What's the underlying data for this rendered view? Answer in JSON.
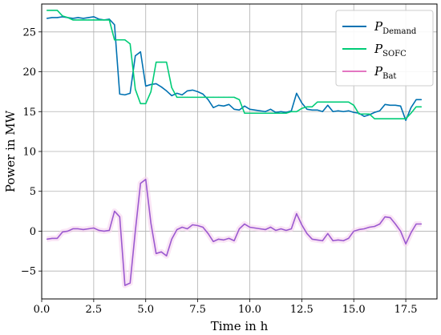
{
  "chart_data": {
    "type": "line",
    "xlabel": "Time in h",
    "ylabel": "Power in MW",
    "xlim": [
      0,
      19
    ],
    "ylim": [
      -8.5,
      28.5
    ],
    "xticks": [
      0.0,
      2.5,
      5.0,
      7.5,
      10.0,
      12.5,
      15.0,
      17.5
    ],
    "xtick_labels": [
      "0.0",
      "2.5",
      "5.0",
      "7.5",
      "10.0",
      "12.5",
      "15.0",
      "17.5"
    ],
    "yticks": [
      -5,
      0,
      5,
      10,
      15,
      20,
      25
    ],
    "ytick_labels": [
      "−5",
      "0",
      "5",
      "10",
      "15",
      "20",
      "25"
    ],
    "grid": true,
    "legend_position": "top-right",
    "series": [
      {
        "name": "P_Demand",
        "legend_main": "P",
        "legend_sub": "Demand",
        "color": "#0072B2",
        "x": [
          0.25,
          0.5,
          0.75,
          1.0,
          1.25,
          1.5,
          1.75,
          2.0,
          2.25,
          2.5,
          2.75,
          3.0,
          3.25,
          3.5,
          3.75,
          4.0,
          4.25,
          4.5,
          4.75,
          5.0,
          5.25,
          5.5,
          5.75,
          6.0,
          6.25,
          6.5,
          6.75,
          7.0,
          7.25,
          7.5,
          7.75,
          8.0,
          8.25,
          8.5,
          8.75,
          9.0,
          9.25,
          9.5,
          9.75,
          10.0,
          10.25,
          10.5,
          10.75,
          11.0,
          11.25,
          11.5,
          11.75,
          12.0,
          12.25,
          12.5,
          12.75,
          13.0,
          13.25,
          13.5,
          13.75,
          14.0,
          14.25,
          14.5,
          14.75,
          15.0,
          15.25,
          15.5,
          15.75,
          16.0,
          16.25,
          16.5,
          16.75,
          17.0,
          17.25,
          17.5,
          17.75,
          18.0,
          18.25
        ],
        "values": [
          26.7,
          26.8,
          26.8,
          26.9,
          26.8,
          26.7,
          26.8,
          26.7,
          26.8,
          26.9,
          26.6,
          26.5,
          26.6,
          25.9,
          17.2,
          17.1,
          17.3,
          22.0,
          22.5,
          18.2,
          18.4,
          18.5,
          18.1,
          17.6,
          17.0,
          17.3,
          17.1,
          17.6,
          17.7,
          17.5,
          17.2,
          16.5,
          15.5,
          15.8,
          15.7,
          15.9,
          15.3,
          15.2,
          15.7,
          15.3,
          15.2,
          15.1,
          15.0,
          15.3,
          14.9,
          15.0,
          14.9,
          15.1,
          17.3,
          16.1,
          15.3,
          15.2,
          15.2,
          15.0,
          15.8,
          15.0,
          15.1,
          15.0,
          15.1,
          14.9,
          14.8,
          14.4,
          14.6,
          14.9,
          15.1,
          15.9,
          15.8,
          15.8,
          15.7,
          13.9,
          15.5,
          16.5,
          16.5
        ]
      },
      {
        "name": "P_SOFC",
        "legend_main": "P",
        "legend_sub": "SOFC",
        "color": "#00CC77",
        "x": [
          0.25,
          0.5,
          0.75,
          1.0,
          1.25,
          1.5,
          1.75,
          2.0,
          2.25,
          2.5,
          2.75,
          3.0,
          3.25,
          3.5,
          3.75,
          4.0,
          4.25,
          4.5,
          4.75,
          5.0,
          5.25,
          5.5,
          5.75,
          6.0,
          6.25,
          6.5,
          6.75,
          7.0,
          7.25,
          7.5,
          7.75,
          8.0,
          8.25,
          8.5,
          8.75,
          9.0,
          9.25,
          9.5,
          9.75,
          10.0,
          10.25,
          10.5,
          10.75,
          11.0,
          11.25,
          11.5,
          11.75,
          12.0,
          12.25,
          12.5,
          12.75,
          13.0,
          13.25,
          13.5,
          13.75,
          14.0,
          14.25,
          14.5,
          14.75,
          15.0,
          15.25,
          15.5,
          15.75,
          16.0,
          16.25,
          16.5,
          16.75,
          17.0,
          17.25,
          17.5,
          17.75,
          18.0,
          18.25
        ],
        "values": [
          27.7,
          27.7,
          27.7,
          27.0,
          26.8,
          26.5,
          26.5,
          26.5,
          26.5,
          26.5,
          26.5,
          26.5,
          26.5,
          24.0,
          24.0,
          24.0,
          23.5,
          17.8,
          16.0,
          16.0,
          17.5,
          21.2,
          21.2,
          21.2,
          18.0,
          16.8,
          16.8,
          16.8,
          16.8,
          16.8,
          16.8,
          16.8,
          16.8,
          16.8,
          16.8,
          16.8,
          16.8,
          16.5,
          14.8,
          14.8,
          14.8,
          14.8,
          14.8,
          14.8,
          14.8,
          14.8,
          14.8,
          15.0,
          15.0,
          15.4,
          15.6,
          15.6,
          16.2,
          16.2,
          16.2,
          16.2,
          16.2,
          16.2,
          16.2,
          15.8,
          14.7,
          14.7,
          14.7,
          14.1,
          14.1,
          14.1,
          14.1,
          14.1,
          14.1,
          14.1,
          14.8,
          15.6,
          15.6
        ]
      },
      {
        "name": "P_Bat",
        "legend_main": "P",
        "legend_sub": "Bat",
        "color": "#9B59D0",
        "legend_color": "#E377C2",
        "x": [
          0.25,
          0.5,
          0.75,
          1.0,
          1.25,
          1.5,
          1.75,
          2.0,
          2.25,
          2.5,
          2.75,
          3.0,
          3.25,
          3.5,
          3.75,
          4.0,
          4.25,
          4.5,
          4.75,
          5.0,
          5.25,
          5.5,
          5.75,
          6.0,
          6.25,
          6.5,
          6.75,
          7.0,
          7.25,
          7.5,
          7.75,
          8.0,
          8.25,
          8.5,
          8.75,
          9.0,
          9.25,
          9.5,
          9.75,
          10.0,
          10.25,
          10.5,
          10.75,
          11.0,
          11.25,
          11.5,
          11.75,
          12.0,
          12.25,
          12.5,
          12.75,
          13.0,
          13.25,
          13.5,
          13.75,
          14.0,
          14.25,
          14.5,
          14.75,
          15.0,
          15.25,
          15.5,
          15.75,
          16.0,
          16.25,
          16.5,
          16.75,
          17.0,
          17.25,
          17.5,
          17.75,
          18.0,
          18.25
        ],
        "values": [
          -1.0,
          -0.9,
          -0.9,
          -0.1,
          0.0,
          0.3,
          0.3,
          0.2,
          0.3,
          0.4,
          0.1,
          0.0,
          0.1,
          2.5,
          1.8,
          -6.8,
          -6.5,
          0.0,
          6.0,
          6.5,
          1.0,
          -2.8,
          -2.6,
          -3.1,
          -1.0,
          0.2,
          0.5,
          0.3,
          0.8,
          0.7,
          0.5,
          -0.3,
          -1.3,
          -1.0,
          -1.1,
          -0.9,
          -1.2,
          0.3,
          0.9,
          0.5,
          0.4,
          0.3,
          0.2,
          0.5,
          0.1,
          0.3,
          0.1,
          0.3,
          2.2,
          0.8,
          -0.3,
          -1.0,
          -1.1,
          -1.2,
          -0.3,
          -1.2,
          -1.1,
          -1.2,
          -0.9,
          0.0,
          0.2,
          0.3,
          0.5,
          0.6,
          0.9,
          1.8,
          1.7,
          0.9,
          0.0,
          -1.6,
          -0.2,
          0.9,
          0.9
        ]
      }
    ]
  }
}
